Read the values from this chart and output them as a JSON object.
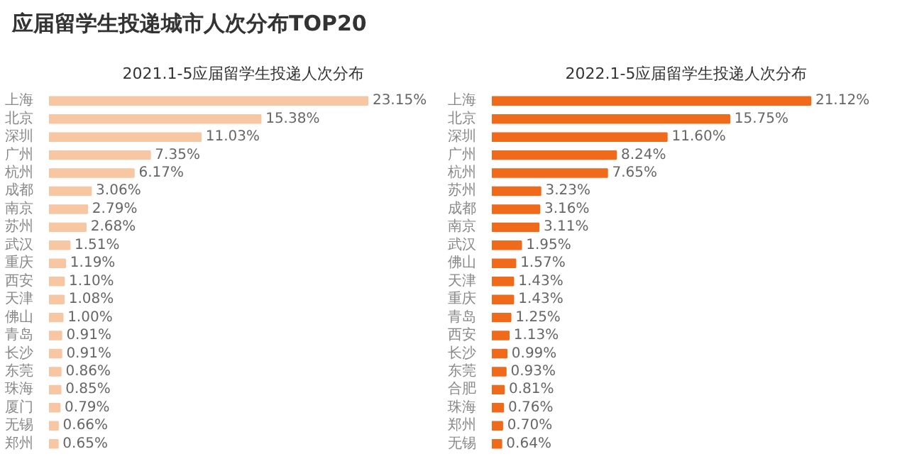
{
  "chart_data": [
    {
      "type": "other",
      "title": "应届留学生投递城市人次分布TOP20"
    },
    {
      "type": "bar",
      "orientation": "horizontal",
      "title": "2021.1-5应届留学生投递人次分布",
      "color": "#f7c6a3",
      "categories": [
        "上海",
        "北京",
        "深圳",
        "广州",
        "杭州",
        "成都",
        "南京",
        "苏州",
        "武汉",
        "重庆",
        "西安",
        "天津",
        "佛山",
        "青岛",
        "长沙",
        "东莞",
        "珠海",
        "厦门",
        "无锡",
        "郑州"
      ],
      "values": [
        23.15,
        15.38,
        11.03,
        7.35,
        6.17,
        3.06,
        2.79,
        2.68,
        1.51,
        1.19,
        1.1,
        1.08,
        1.0,
        0.91,
        0.91,
        0.86,
        0.85,
        0.79,
        0.66,
        0.65
      ],
      "value_labels": [
        "23.15%",
        "15.38%",
        "11.03%",
        "7.35%",
        "6.17%",
        "3.06%",
        "2.79%",
        "2.68%",
        "1.51%",
        "1.19%",
        "1.10%",
        "1.08%",
        "1.00%",
        "0.91%",
        "0.91%",
        "0.86%",
        "0.85%",
        "0.79%",
        "0.66%",
        "0.65%"
      ]
    },
    {
      "type": "bar",
      "orientation": "horizontal",
      "title": "2022.1-5应届留学生投递人次分布",
      "color": "#f06a1c",
      "categories": [
        "上海",
        "北京",
        "深圳",
        "广州",
        "杭州",
        "苏州",
        "成都",
        "南京",
        "武汉",
        "佛山",
        "天津",
        "重庆",
        "青岛",
        "西安",
        "长沙",
        "东莞",
        "合肥",
        "珠海",
        "郑州",
        "无锡"
      ],
      "values": [
        21.12,
        15.75,
        11.6,
        8.24,
        7.65,
        3.23,
        3.16,
        3.11,
        1.95,
        1.57,
        1.43,
        1.43,
        1.25,
        1.13,
        0.99,
        0.93,
        0.81,
        0.76,
        0.7,
        0.64
      ],
      "value_labels": [
        "21.12%",
        "15.75%",
        "11.60%",
        "8.24%",
        "7.65%",
        "3.23%",
        "3.16%",
        "3.11%",
        "1.95%",
        "1.57%",
        "1.43%",
        "1.43%",
        "1.25%",
        "1.13%",
        "0.99%",
        "0.93%",
        "0.81%",
        "0.76%",
        "0.70%",
        "0.64%"
      ]
    }
  ]
}
